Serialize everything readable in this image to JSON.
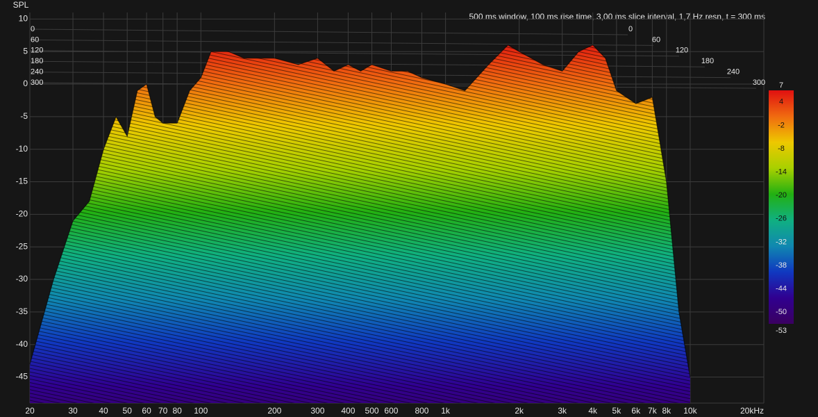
{
  "chart_data": {
    "type": "waterfall",
    "title": "500 ms window, 100 ms rise time, 3,00 ms slice interval, 1,7 Hz resn, t = 300 ms",
    "y_label": "SPL",
    "x_scale": "log",
    "xlim": [
      20,
      20000
    ],
    "xticks": [
      20,
      30,
      40,
      50,
      60,
      70,
      80,
      100,
      200,
      300,
      400,
      500,
      600,
      800,
      {
        "value": 1000,
        "label": "1k"
      },
      {
        "value": 2000,
        "label": "2k"
      },
      {
        "value": 3000,
        "label": "3k"
      },
      {
        "value": 4000,
        "label": "4k"
      },
      {
        "value": 5000,
        "label": "5k"
      },
      {
        "value": 6000,
        "label": "6k"
      },
      {
        "value": 7000,
        "label": "7k"
      },
      {
        "value": 8000,
        "label": "8k"
      },
      {
        "value": 10000,
        "label": "10k"
      },
      {
        "value": 20000,
        "label": "20kHz"
      }
    ],
    "ylim": [
      -49,
      11
    ],
    "yticks": [
      10,
      5,
      0,
      -5,
      -10,
      -15,
      -20,
      -25,
      -30,
      -35,
      -40,
      -45
    ],
    "time_lim": [
      0,
      300
    ],
    "time_ticks": [
      0,
      60,
      120,
      180,
      240,
      300
    ],
    "color_lim": [
      -53,
      7
    ],
    "color_ticks": [
      7,
      4,
      -2,
      -8,
      -14,
      -20,
      -26,
      -32,
      -38,
      -44,
      -50,
      -53
    ],
    "colormap": [
      "#e01010",
      "#f06a10",
      "#eec800",
      "#a8d000",
      "#22b012",
      "#10b080",
      "#1088b0",
      "#1038c0",
      "#300090",
      "#3a0060"
    ],
    "grid": true,
    "x": [
      20,
      25,
      30,
      35,
      40,
      45,
      50,
      55,
      60,
      65,
      70,
      80,
      90,
      100,
      110,
      130,
      150,
      180,
      200,
      250,
      300,
      350,
      400,
      450,
      500,
      600,
      700,
      800,
      1000,
      1200,
      1500,
      1800,
      2000,
      2500,
      3000,
      3500,
      4000,
      4500,
      5000,
      6000,
      7000,
      8000,
      9000,
      10000
    ],
    "values": [
      -43,
      -30,
      -21,
      -18,
      -10,
      -5,
      -8,
      -1,
      0,
      -5,
      -6,
      -6,
      -1,
      1,
      5,
      5,
      4,
      4,
      4,
      3,
      4,
      2,
      3,
      2,
      3,
      2,
      2,
      1,
      0,
      -1,
      3,
      6,
      5,
      3,
      2,
      5,
      6,
      4,
      -1,
      -3,
      -2,
      -15,
      -35,
      -45
    ]
  }
}
